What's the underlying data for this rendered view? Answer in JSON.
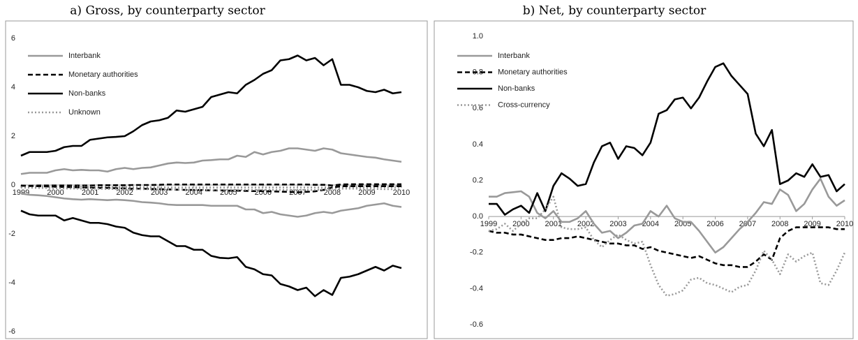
{
  "chart_data": [
    {
      "type": "line",
      "title": "a) Gross, by counterparty sector",
      "x": [
        1999,
        1999.25,
        1999.5,
        1999.75,
        2000,
        2000.25,
        2000.5,
        2000.75,
        2001,
        2001.25,
        2001.5,
        2001.75,
        2002,
        2002.25,
        2002.5,
        2002.75,
        2003,
        2003.25,
        2003.5,
        2003.75,
        2004,
        2004.25,
        2004.5,
        2004.75,
        2005,
        2005.25,
        2005.5,
        2005.75,
        2006,
        2006.25,
        2006.5,
        2006.75,
        2007,
        2007.25,
        2007.5,
        2007.75,
        2008,
        2008.25,
        2008.5,
        2008.75,
        2009,
        2009.25,
        2009.5,
        2009.75,
        2010
      ],
      "xlim": [
        1999,
        2010
      ],
      "xticks": [
        1999,
        2000,
        2001,
        2002,
        2003,
        2004,
        2005,
        2006,
        2007,
        2008,
        2009,
        2010
      ],
      "ylim": [
        -6,
        6
      ],
      "yticks": [
        -6,
        -4,
        -2,
        0,
        2,
        4,
        6
      ],
      "grid": false,
      "legend": "upper left",
      "series": [
        {
          "name": "Interbank",
          "color": "#999999",
          "linestyle": "solid",
          "values": [
            0.45,
            0.5,
            0.5,
            0.5,
            0.6,
            0.65,
            0.6,
            0.62,
            0.6,
            0.6,
            0.55,
            0.65,
            0.7,
            0.65,
            0.7,
            0.72,
            0.8,
            0.88,
            0.92,
            0.9,
            0.92,
            1.0,
            1.02,
            1.05,
            1.05,
            1.2,
            1.15,
            1.35,
            1.25,
            1.35,
            1.4,
            1.5,
            1.5,
            1.45,
            1.4,
            1.5,
            1.45,
            1.3,
            1.25,
            1.2,
            1.15,
            1.12,
            1.05,
            1.0,
            0.95
          ]
        },
        {
          "name": "Monetary authorities",
          "color": "#000000",
          "linestyle": "dashed",
          "values": [
            -0.03,
            -0.03,
            -0.02,
            -0.02,
            -0.02,
            -0.02,
            -0.02,
            -0.02,
            -0.02,
            -0.01,
            -0.01,
            -0.01,
            -0.01,
            0,
            0,
            0,
            0.01,
            0.02,
            0.02,
            0.02,
            0.02,
            0.02,
            0.02,
            0.02,
            0.02,
            0.02,
            0.02,
            0.02,
            0.02,
            0.02,
            0.02,
            0.02,
            0.02,
            0.02,
            0.01,
            0.01,
            -0.02,
            0.02,
            0.03,
            0.03,
            0.03,
            0.03,
            0.03,
            0.03,
            0.03
          ]
        },
        {
          "name": "Non-banks",
          "color": "#000000",
          "linestyle": "solid",
          "values": [
            1.2,
            1.35,
            1.35,
            1.35,
            1.4,
            1.55,
            1.6,
            1.6,
            1.85,
            1.9,
            1.95,
            1.97,
            2.0,
            2.2,
            2.45,
            2.6,
            2.65,
            2.75,
            3.05,
            3.0,
            3.1,
            3.2,
            3.6,
            3.7,
            3.8,
            3.75,
            4.1,
            4.3,
            4.55,
            4.7,
            5.1,
            5.15,
            5.3,
            5.1,
            5.2,
            4.9,
            5.15,
            4.1,
            4.1,
            4.0,
            3.85,
            3.8,
            3.9,
            3.75,
            3.8
          ]
        },
        {
          "name": "Unknown",
          "color": "#999999",
          "linestyle": "dotted",
          "values": [
            -0.05,
            -0.05,
            -0.06,
            -0.06,
            -0.06,
            -0.07,
            -0.07,
            -0.07,
            -0.08,
            -0.08,
            -0.08,
            -0.08,
            -0.08,
            -0.09,
            -0.09,
            -0.09,
            -0.09,
            -0.1,
            -0.1,
            -0.1,
            -0.1,
            -0.1,
            -0.1,
            -0.1,
            -0.1,
            -0.1,
            -0.1,
            -0.1,
            -0.1,
            -0.1,
            -0.1,
            -0.1,
            -0.1,
            -0.1,
            -0.1,
            -0.1,
            -0.08,
            -0.08,
            -0.08,
            -0.08,
            -0.08,
            -0.08,
            -0.08,
            -0.08,
            -0.08
          ]
        },
        {
          "color": "#999999",
          "linestyle": "solid",
          "values": [
            -0.35,
            -0.4,
            -0.42,
            -0.45,
            -0.5,
            -0.55,
            -0.58,
            -0.6,
            -0.58,
            -0.6,
            -0.62,
            -0.6,
            -0.62,
            -0.65,
            -0.7,
            -0.72,
            -0.75,
            -0.8,
            -0.82,
            -0.82,
            -0.82,
            -0.82,
            -0.85,
            -0.85,
            -0.85,
            -0.85,
            -1.0,
            -1.0,
            -1.15,
            -1.1,
            -1.2,
            -1.25,
            -1.3,
            -1.25,
            -1.15,
            -1.1,
            -1.15,
            -1.05,
            -1.0,
            -0.95,
            -0.85,
            -0.8,
            -0.75,
            -0.85,
            -0.9
          ]
        },
        {
          "color": "#000000",
          "linestyle": "dashed",
          "values": [
            -0.02,
            -0.04,
            -0.05,
            -0.06,
            -0.07,
            -0.08,
            -0.09,
            -0.1,
            -0.11,
            -0.12,
            -0.12,
            -0.13,
            -0.14,
            -0.15,
            -0.15,
            -0.16,
            -0.17,
            -0.18,
            -0.19,
            -0.2,
            -0.2,
            -0.21,
            -0.22,
            -0.22,
            -0.23,
            -0.23,
            -0.24,
            -0.25,
            -0.25,
            -0.26,
            -0.27,
            -0.28,
            -0.3,
            -0.28,
            -0.26,
            -0.2,
            -0.1,
            -0.05,
            -0.05,
            -0.05,
            -0.05,
            -0.05,
            -0.05,
            -0.05,
            -0.05
          ]
        },
        {
          "color": "#000000",
          "linestyle": "solid",
          "values": [
            -1.05,
            -1.2,
            -1.25,
            -1.25,
            -1.25,
            -1.45,
            -1.35,
            -1.45,
            -1.55,
            -1.55,
            -1.6,
            -1.7,
            -1.75,
            -1.95,
            -2.05,
            -2.1,
            -2.1,
            -2.3,
            -2.5,
            -2.5,
            -2.65,
            -2.65,
            -2.9,
            -2.98,
            -3.0,
            -2.95,
            -3.35,
            -3.45,
            -3.65,
            -3.7,
            -4.05,
            -4.15,
            -4.3,
            -4.2,
            -4.55,
            -4.3,
            -4.5,
            -3.8,
            -3.75,
            -3.65,
            -3.5,
            -3.35,
            -3.5,
            -3.3,
            -3.4
          ]
        },
        {
          "color": "#999999",
          "linestyle": "dotted",
          "values": [
            -0.1,
            -0.11,
            -0.12,
            -0.12,
            -0.13,
            -0.14,
            -0.14,
            -0.15,
            -0.15,
            -0.15,
            -0.16,
            -0.16,
            -0.16,
            -0.17,
            -0.17,
            -0.17,
            -0.18,
            -0.18,
            -0.18,
            -0.19,
            -0.19,
            -0.19,
            -0.2,
            -0.2,
            -0.2,
            -0.2,
            -0.2,
            -0.2,
            -0.2,
            -0.2,
            -0.2,
            -0.2,
            -0.2,
            -0.2,
            -0.2,
            -0.18,
            -0.15,
            -0.15,
            -0.15,
            -0.15,
            -0.16,
            -0.16,
            -0.17,
            -0.17,
            -0.18
          ]
        }
      ]
    },
    {
      "type": "line",
      "title": "b) Net, by counterparty sector",
      "x": [
        1999,
        1999.25,
        1999.5,
        1999.75,
        2000,
        2000.25,
        2000.5,
        2000.75,
        2001,
        2001.25,
        2001.5,
        2001.75,
        2002,
        2002.25,
        2002.5,
        2002.75,
        2003,
        2003.25,
        2003.5,
        2003.75,
        2004,
        2004.25,
        2004.5,
        2004.75,
        2005,
        2005.25,
        2005.5,
        2005.75,
        2006,
        2006.25,
        2006.5,
        2006.75,
        2007,
        2007.25,
        2007.5,
        2007.75,
        2008,
        2008.25,
        2008.5,
        2008.75,
        2009,
        2009.25,
        2009.5,
        2009.75,
        2010
      ],
      "xlim": [
        1999,
        2010
      ],
      "xticks": [
        1999,
        2000,
        2001,
        2002,
        2003,
        2004,
        2005,
        2006,
        2007,
        2008,
        2009,
        2010
      ],
      "ylim": [
        -0.6,
        1.0
      ],
      "yticks": [
        -0.6,
        -0.4,
        -0.2,
        {
          "value": 0,
          "label": "0.0"
        },
        0.2,
        0.4,
        0.6,
        0.8,
        {
          "value": 1,
          "label": "1.0"
        }
      ],
      "grid": false,
      "legend": "upper left",
      "series": [
        {
          "name": "Interbank",
          "color": "#999999",
          "linestyle": "solid",
          "values": [
            0.11,
            0.11,
            0.13,
            0.135,
            0.14,
            0.11,
            0.02,
            -0.01,
            0.03,
            -0.03,
            -0.03,
            -0.01,
            0.03,
            -0.04,
            -0.09,
            -0.08,
            -0.12,
            -0.09,
            -0.05,
            -0.04,
            0.03,
            0.0,
            0.06,
            -0.01,
            -0.03,
            -0.03,
            -0.08,
            -0.14,
            -0.2,
            -0.17,
            -0.12,
            -0.07,
            -0.03,
            0.02,
            0.08,
            0.07,
            0.15,
            0.12,
            0.03,
            0.07,
            0.15,
            0.21,
            0.11,
            0.06,
            0.09
          ]
        },
        {
          "name": "Monetary authorities",
          "color": "#000000",
          "linestyle": "dashed",
          "values": [
            -0.08,
            -0.09,
            -0.09,
            -0.1,
            -0.1,
            -0.11,
            -0.12,
            -0.13,
            -0.13,
            -0.12,
            -0.12,
            -0.11,
            -0.12,
            -0.13,
            -0.14,
            -0.15,
            -0.15,
            -0.16,
            -0.16,
            -0.18,
            -0.17,
            -0.19,
            -0.2,
            -0.21,
            -0.22,
            -0.23,
            -0.22,
            -0.24,
            -0.26,
            -0.27,
            -0.27,
            -0.28,
            -0.28,
            -0.25,
            -0.21,
            -0.24,
            -0.12,
            -0.08,
            -0.06,
            -0.06,
            -0.06,
            -0.06,
            -0.06,
            -0.07,
            -0.07
          ]
        },
        {
          "name": "Non-banks",
          "color": "#000000",
          "linestyle": "solid",
          "values": [
            0.07,
            0.07,
            0.01,
            0.04,
            0.06,
            0.02,
            0.13,
            0.03,
            0.17,
            0.24,
            0.21,
            0.17,
            0.18,
            0.3,
            0.39,
            0.41,
            0.32,
            0.39,
            0.38,
            0.34,
            0.41,
            0.57,
            0.59,
            0.65,
            0.66,
            0.6,
            0.66,
            0.75,
            0.83,
            0.85,
            0.78,
            0.73,
            0.68,
            0.46,
            0.39,
            0.48,
            0.18,
            0.2,
            0.24,
            0.22,
            0.29,
            0.22,
            0.23,
            0.14,
            0.18
          ]
        },
        {
          "name": "Cross-currency",
          "color": "#999999",
          "linestyle": "dotted",
          "values": [
            -0.08,
            -0.07,
            -0.04,
            -0.08,
            -0.04,
            -0.01,
            -0.01,
            0.04,
            0.11,
            -0.06,
            -0.07,
            -0.07,
            -0.06,
            -0.13,
            -0.17,
            -0.13,
            -0.1,
            -0.13,
            -0.15,
            -0.14,
            -0.27,
            -0.38,
            -0.44,
            -0.43,
            -0.41,
            -0.35,
            -0.34,
            -0.37,
            -0.38,
            -0.4,
            -0.42,
            -0.39,
            -0.38,
            -0.3,
            -0.19,
            -0.24,
            -0.32,
            -0.21,
            -0.25,
            -0.22,
            -0.2,
            -0.37,
            -0.38,
            -0.3,
            -0.2
          ]
        }
      ]
    }
  ]
}
